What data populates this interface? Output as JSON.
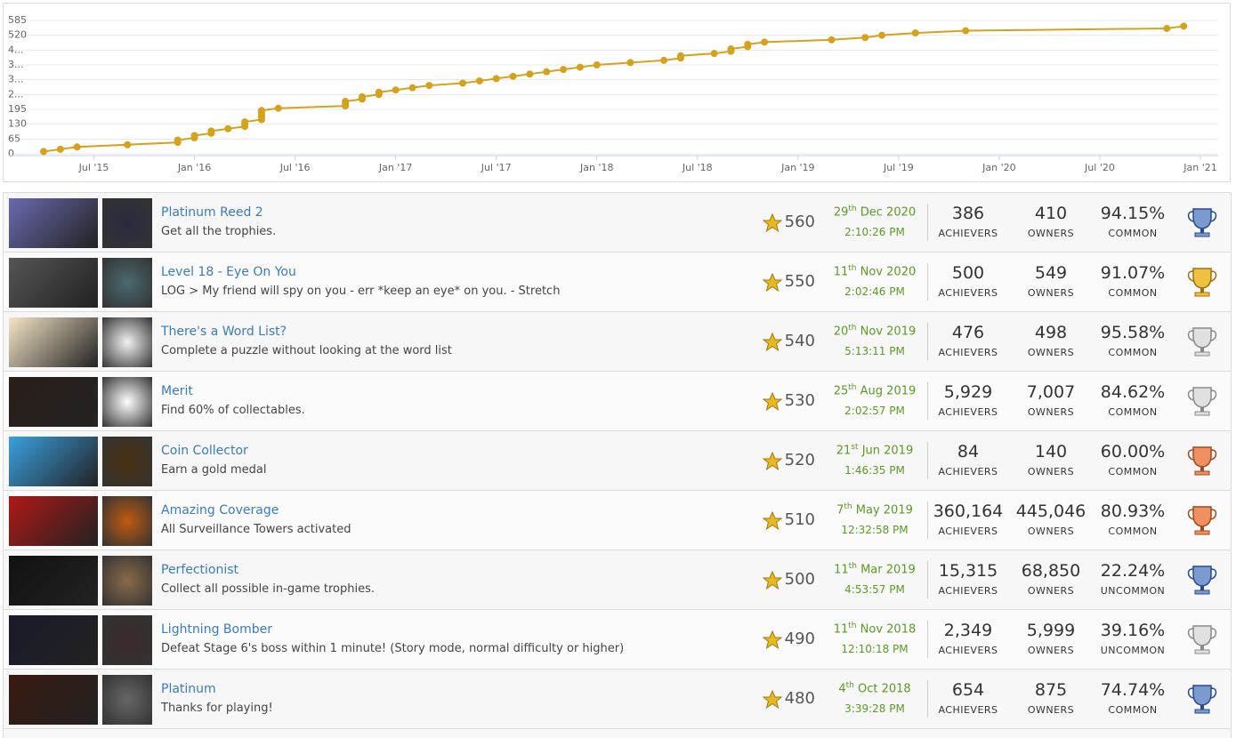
{
  "chart_data": {
    "type": "line",
    "color": "#d4a21c",
    "grid": true,
    "x": [
      "2015-04",
      "2015-05",
      "2015-06",
      "2015-09",
      "2015-12",
      "2015-12",
      "2016-01",
      "2016-01",
      "2016-02",
      "2016-02",
      "2016-03",
      "2016-04",
      "2016-04",
      "2016-04",
      "2016-05",
      "2016-05",
      "2016-05",
      "2016-05",
      "2016-05",
      "2016-06",
      "2016-10",
      "2016-10",
      "2016-10",
      "2016-11",
      "2016-11",
      "2016-12",
      "2016-12",
      "2017-01",
      "2017-02",
      "2017-03",
      "2017-05",
      "2017-06",
      "2017-07",
      "2017-08",
      "2017-09",
      "2017-10",
      "2017-11",
      "2017-12",
      "2018-01",
      "2018-03",
      "2018-05",
      "2018-06",
      "2018-06",
      "2018-08",
      "2018-09",
      "2018-09",
      "2018-10",
      "2018-10",
      "2018-11",
      "2019-03",
      "2019-05",
      "2019-06",
      "2019-08",
      "2019-11",
      "2020-11",
      "2020-12"
    ],
    "values": [
      10,
      20,
      30,
      40,
      50,
      60,
      70,
      80,
      90,
      100,
      110,
      120,
      130,
      140,
      150,
      160,
      170,
      180,
      190,
      200,
      210,
      220,
      230,
      240,
      250,
      260,
      270,
      280,
      290,
      300,
      310,
      320,
      330,
      340,
      350,
      360,
      370,
      380,
      390,
      400,
      410,
      420,
      430,
      440,
      450,
      460,
      470,
      480,
      490,
      500,
      510,
      520,
      530,
      540,
      550,
      560
    ],
    "xlim": [
      "2015-04",
      "2021-01"
    ],
    "xticks": [
      {
        "value": "2015-07",
        "label": "Jul '15"
      },
      {
        "value": "2016-01",
        "label": "Jan '16"
      },
      {
        "value": "2016-07",
        "label": "Jul '16"
      },
      {
        "value": "2017-01",
        "label": "Jan '17"
      },
      {
        "value": "2017-07",
        "label": "Jul '17"
      },
      {
        "value": "2018-01",
        "label": "Jan '18"
      },
      {
        "value": "2018-07",
        "label": "Jul '18"
      },
      {
        "value": "2019-01",
        "label": "Jan '19"
      },
      {
        "value": "2019-07",
        "label": "Jul '19"
      },
      {
        "value": "2020-01",
        "label": "Jan '20"
      },
      {
        "value": "2020-07",
        "label": "Jul '20"
      },
      {
        "value": "2021-01",
        "label": "Jan '21"
      }
    ],
    "ylim": [
      0,
      585
    ],
    "yticks": [
      0,
      65,
      130,
      195,
      {
        "value": 260,
        "label": "2..."
      },
      {
        "value": 325,
        "label": "3..."
      },
      {
        "value": 390,
        "label": "3..."
      },
      {
        "value": 455,
        "label": "4..."
      },
      520,
      585
    ]
  },
  "table": {
    "labels": {
      "achievers": "ACHIEVERS",
      "owners": "OWNERS"
    },
    "rows": [
      {
        "name": "Platinum Reed 2",
        "description": "Get all the trophies.",
        "points": 560,
        "day": "29",
        "suffix": "th",
        "date": "Dec 2020",
        "time": "2:10:26 PM",
        "achievers": "386",
        "owners": "410",
        "percent": "94.15%",
        "rarity": "COMMON",
        "trophy": "platinum"
      },
      {
        "name": "Level 18 - Eye On You",
        "description": "LOG > My friend will spy on you - err *keep an eye* on you. - Stretch",
        "points": 550,
        "day": "11",
        "suffix": "th",
        "date": "Nov 2020",
        "time": "2:02:46 PM",
        "achievers": "500",
        "owners": "549",
        "percent": "91.07%",
        "rarity": "COMMON",
        "trophy": "gold"
      },
      {
        "name": "There's a Word List?",
        "description": "Complete a puzzle without looking at the word list",
        "points": 540,
        "day": "20",
        "suffix": "th",
        "date": "Nov 2019",
        "time": "5:13:11 PM",
        "achievers": "476",
        "owners": "498",
        "percent": "95.58%",
        "rarity": "COMMON",
        "trophy": "silver"
      },
      {
        "name": "Merit",
        "description": "Find 60% of collectables.",
        "points": 530,
        "day": "25",
        "suffix": "th",
        "date": "Aug 2019",
        "time": "2:02:57 PM",
        "achievers": "5,929",
        "owners": "7,007",
        "percent": "84.62%",
        "rarity": "COMMON",
        "trophy": "silver"
      },
      {
        "name": "Coin Collector",
        "description": "Earn a gold medal",
        "points": 520,
        "day": "21",
        "suffix": "st",
        "date": "Jun 2019",
        "time": "1:46:35 PM",
        "achievers": "84",
        "owners": "140",
        "percent": "60.00%",
        "rarity": "COMMON",
        "trophy": "bronze"
      },
      {
        "name": "Amazing Coverage",
        "description": "All Surveillance Towers activated",
        "points": 510,
        "day": "7",
        "suffix": "th",
        "date": "May 2019",
        "time": "12:32:58 PM",
        "achievers": "360,164",
        "owners": "445,046",
        "percent": "80.93%",
        "rarity": "COMMON",
        "trophy": "bronze"
      },
      {
        "name": "Perfectionist",
        "description": "Collect all possible in-game trophies.",
        "points": 500,
        "day": "11",
        "suffix": "th",
        "date": "Mar 2019",
        "time": "4:53:57 PM",
        "achievers": "15,315",
        "owners": "68,850",
        "percent": "22.24%",
        "rarity": "UNCOMMON",
        "trophy": "platinum"
      },
      {
        "name": "Lightning Bomber",
        "description": "Defeat Stage 6's boss within 1 minute! (Story mode, normal difficulty or higher)",
        "points": 490,
        "day": "11",
        "suffix": "th",
        "date": "Nov 2018",
        "time": "12:10:18 PM",
        "achievers": "2,349",
        "owners": "5,999",
        "percent": "39.16%",
        "rarity": "UNCOMMON",
        "trophy": "silver"
      },
      {
        "name": "Platinum",
        "description": "Thanks for playing!",
        "points": 480,
        "day": "4",
        "suffix": "th",
        "date": "Oct 2018",
        "time": "3:39:28 PM",
        "achievers": "654",
        "owners": "875",
        "percent": "74.74%",
        "rarity": "COMMON",
        "trophy": "platinum"
      }
    ]
  }
}
